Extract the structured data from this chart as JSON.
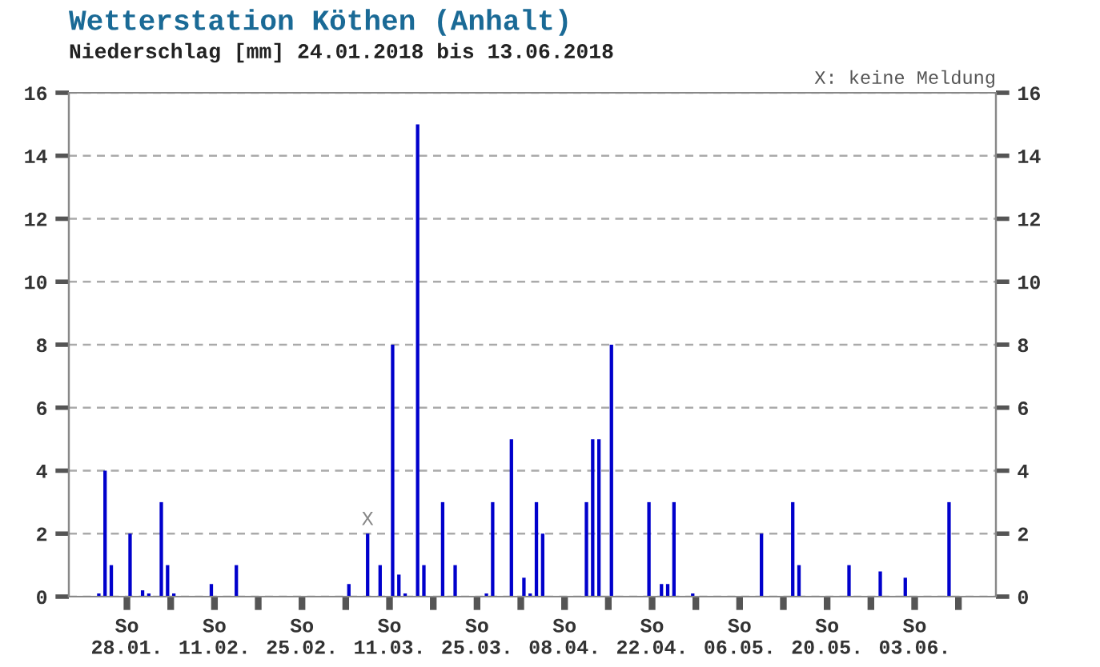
{
  "chart_data": {
    "type": "bar",
    "title": "Wetterstation Köthen (Anhalt)",
    "subtitle": "Niederschlag [mm] 24.01.2018 bis 13.06.2018",
    "annotations": [
      "X: keine Meldung",
      {
        "text": "X",
        "x": "2018-03-08",
        "y": 2
      }
    ],
    "x": [
      "2018-01-24",
      "2018-01-25",
      "2018-01-26",
      "2018-01-29",
      "2018-01-31",
      "2018-02-01",
      "2018-02-03",
      "2018-02-04",
      "2018-02-05",
      "2018-02-11",
      "2018-02-15",
      "2018-03-05",
      "2018-03-08",
      "2018-03-10",
      "2018-03-12",
      "2018-03-13",
      "2018-03-14",
      "2018-03-16",
      "2018-03-17",
      "2018-03-20",
      "2018-03-22",
      "2018-03-27",
      "2018-03-28",
      "2018-03-31",
      "2018-04-02",
      "2018-04-03",
      "2018-04-04",
      "2018-04-05",
      "2018-04-12",
      "2018-04-13",
      "2018-04-14",
      "2018-04-16",
      "2018-04-22",
      "2018-04-24",
      "2018-04-25",
      "2018-04-26",
      "2018-04-29",
      "2018-05-10",
      "2018-05-15",
      "2018-05-16",
      "2018-05-24",
      "2018-05-29",
      "2018-06-02",
      "2018-06-09"
    ],
    "series": [
      {
        "color": "#0000cc",
        "values": [
          0.1,
          4,
          1,
          2,
          0.2,
          0.1,
          3,
          1,
          0.1,
          0.4,
          1,
          0.4,
          2,
          1,
          8,
          0.7,
          0.1,
          15,
          1,
          3,
          1,
          0.1,
          3,
          5,
          0.6,
          0.1,
          3,
          2,
          3,
          5,
          5,
          8,
          3,
          0.4,
          0.4,
          3,
          0.1,
          2,
          3,
          1,
          1,
          0.8,
          0.6,
          3
        ]
      }
    ],
    "xlim": [
      "2018-01-19T05:00",
      "2018-06-16T12:00"
    ],
    "xticks": [
      {
        "value": "2018-01-28T12:00",
        "label": "So\n28.01."
      },
      {
        "value": "2018-02-04T12:00",
        "label": null
      },
      {
        "value": "2018-02-11T12:00",
        "label": "So\n11.02."
      },
      {
        "value": "2018-02-18T12:00",
        "label": null
      },
      {
        "value": "2018-02-25T12:00",
        "label": "So\n25.02."
      },
      {
        "value": "2018-03-04T12:00",
        "label": null
      },
      {
        "value": "2018-03-11T12:00",
        "label": "So\n11.03."
      },
      {
        "value": "2018-03-18T12:00",
        "label": null
      },
      {
        "value": "2018-03-25T12:00",
        "label": "So\n25.03."
      },
      {
        "value": "2018-04-01T12:00",
        "label": null
      },
      {
        "value": "2018-04-08T12:00",
        "label": "So\n08.04."
      },
      {
        "value": "2018-04-15T12:00",
        "label": null
      },
      {
        "value": "2018-04-22T12:00",
        "label": "So\n22.04."
      },
      {
        "value": "2018-04-29T12:00",
        "label": null
      },
      {
        "value": "2018-05-06T12:00",
        "label": "So\n06.05."
      },
      {
        "value": "2018-05-13T12:00",
        "label": null
      },
      {
        "value": "2018-05-20T12:00",
        "label": "So\n20.05."
      },
      {
        "value": "2018-05-27T12:00",
        "label": null
      },
      {
        "value": "2018-06-03T12:00",
        "label": "So\n03.06."
      },
      {
        "value": "2018-06-10T12:00",
        "label": null
      }
    ],
    "ylim": [
      0,
      16
    ],
    "yticks": [
      0,
      2,
      4,
      6,
      8,
      10,
      12,
      14,
      16
    ],
    "y2lim": [
      0,
      16
    ],
    "y2ticks": [
      0,
      2,
      4,
      6,
      8,
      10,
      12,
      14,
      16
    ],
    "grid": "y",
    "legend": false
  }
}
